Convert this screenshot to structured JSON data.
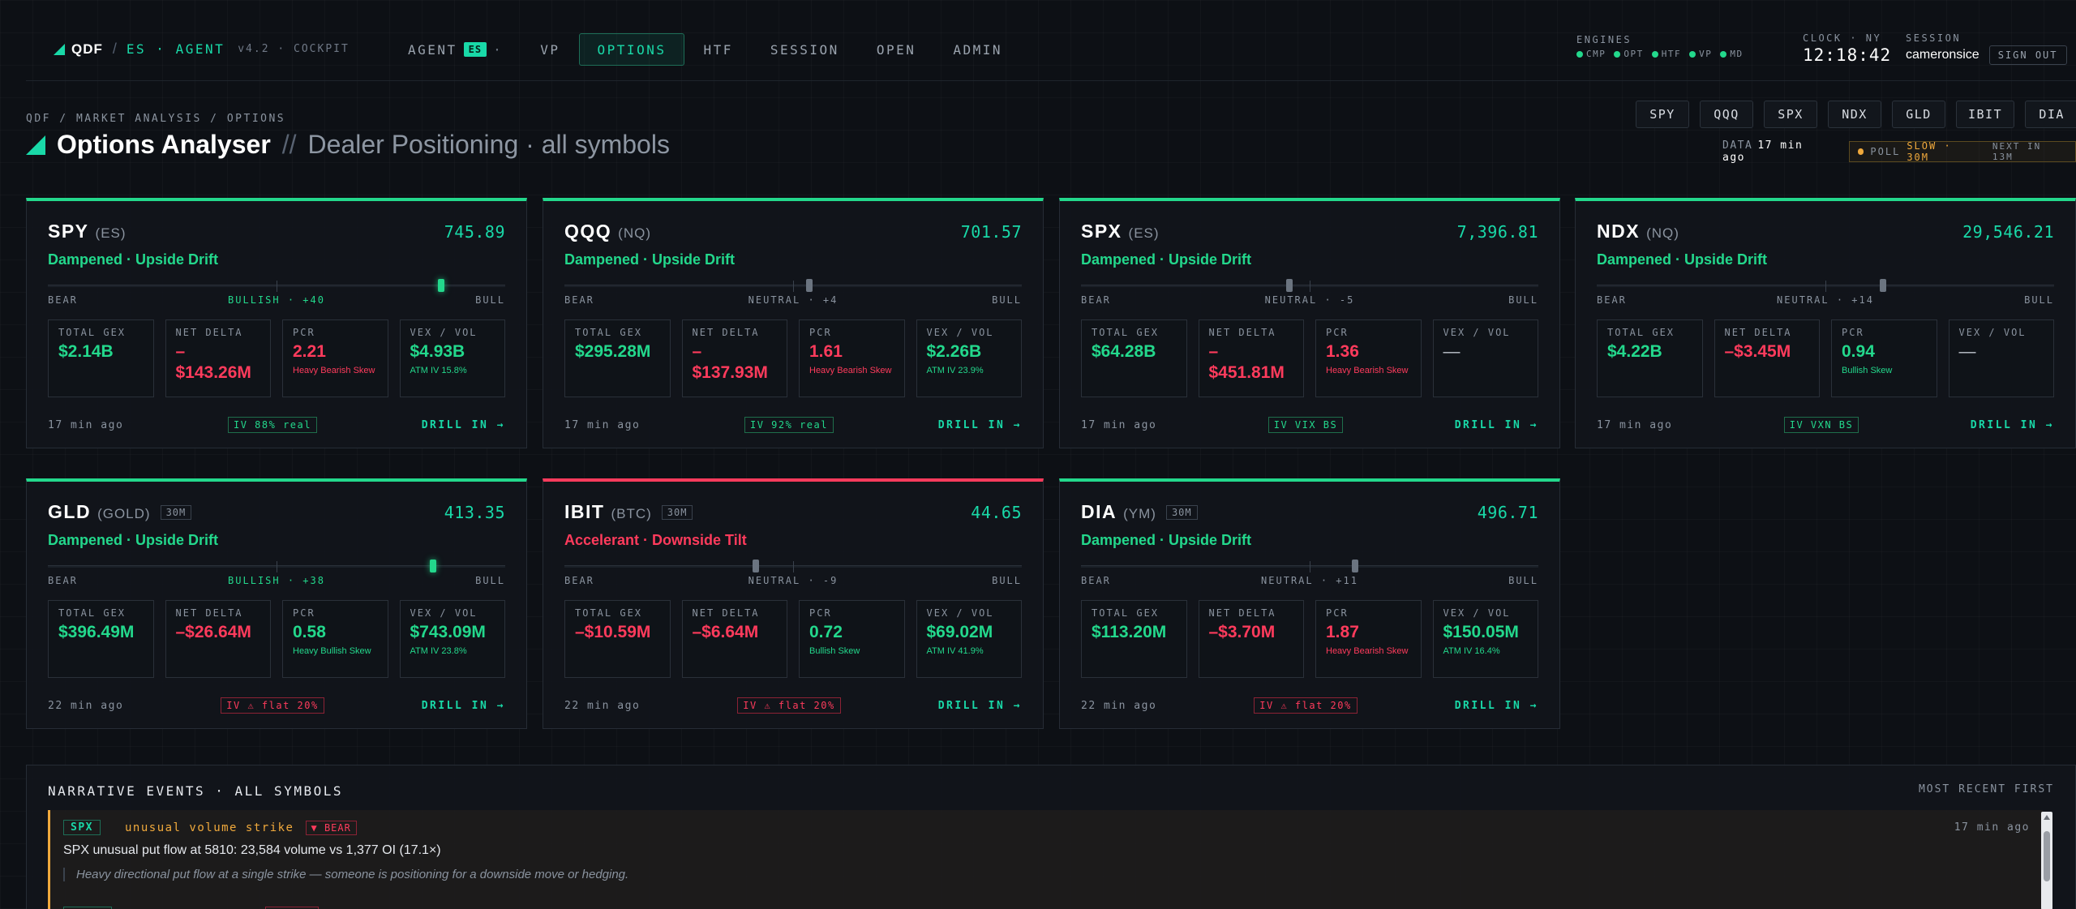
{
  "nav": {
    "brand": "QDF",
    "brand_sub": "ES · AGENT",
    "version": "v4.2 · COCKPIT",
    "items": [
      {
        "label": "AGENT",
        "badge": "ES",
        "dot": "·",
        "active": false
      },
      {
        "label": "VP",
        "active": false
      },
      {
        "label": "OPTIONS",
        "active": true
      },
      {
        "label": "HTF",
        "active": false
      },
      {
        "label": "SESSION",
        "active": false
      },
      {
        "label": "OPEN",
        "active": false
      },
      {
        "label": "ADMIN",
        "active": false
      }
    ],
    "engines_label": "ENGINES",
    "engines": [
      "CMP",
      "OPT",
      "HTF",
      "VP",
      "MD"
    ],
    "clock_label": "CLOCK · NY",
    "clock": "12:18:42",
    "session_label": "SESSION",
    "user": "cameronsice",
    "sign_out": "SIGN OUT"
  },
  "header": {
    "breadcrumb": "QDF / MARKET ANALYSIS / OPTIONS",
    "title": "Options Analyser",
    "separator": "//",
    "subtitle": "Dealer Positioning · all symbols",
    "symbols": [
      "SPY",
      "QQQ",
      "SPX",
      "NDX",
      "GLD",
      "IBIT",
      "DIA"
    ],
    "data_label": "DATA",
    "data_age": "17 min ago",
    "poll_label": "POLL",
    "poll_mode": "SLOW · 30M",
    "poll_next": "NEXT IN 13M"
  },
  "cards": [
    {
      "symbol": "SPY",
      "future": "(ES)",
      "tf": "",
      "price": "745.89",
      "regime": "Dampened · Upside Drift",
      "tone": "bull",
      "bias_label": "BULLISH · +40",
      "bias": 40,
      "bear": "BEAR",
      "bull": "BULL",
      "metrics": [
        {
          "label": "TOTAL GEX",
          "value": "$2.14B",
          "tone": "pos",
          "sub": ""
        },
        {
          "label": "NET DELTA",
          "value": "–$143.26M",
          "tone": "neg",
          "sub": ""
        },
        {
          "label": "PCR",
          "value": "2.21",
          "tone": "neg",
          "sub": "Heavy Bearish Skew"
        },
        {
          "label": "VEX / VOL",
          "value": "$4.93B",
          "tone": "pos",
          "sub": "ATM IV 15.8%"
        }
      ],
      "age": "17 min ago",
      "iv": "IV 88% real",
      "iv_tone": "good",
      "drill": "DRILL IN →"
    },
    {
      "symbol": "QQQ",
      "future": "(NQ)",
      "tf": "",
      "price": "701.57",
      "regime": "Dampened · Upside Drift",
      "tone": "bull",
      "bias_label": "NEUTRAL · +4",
      "bias": 4,
      "bear": "BEAR",
      "bull": "BULL",
      "metrics": [
        {
          "label": "TOTAL GEX",
          "value": "$295.28M",
          "tone": "pos",
          "sub": ""
        },
        {
          "label": "NET DELTA",
          "value": "–$137.93M",
          "tone": "neg",
          "sub": ""
        },
        {
          "label": "PCR",
          "value": "1.61",
          "tone": "neg",
          "sub": "Heavy Bearish Skew"
        },
        {
          "label": "VEX / VOL",
          "value": "$2.26B",
          "tone": "pos",
          "sub": "ATM IV 23.9%"
        }
      ],
      "age": "17 min ago",
      "iv": "IV 92% real",
      "iv_tone": "good",
      "drill": "DRILL IN →"
    },
    {
      "symbol": "SPX",
      "future": "(ES)",
      "tf": "",
      "price": "7,396.81",
      "regime": "Dampened · Upside Drift",
      "tone": "bull",
      "bias_label": "NEUTRAL · -5",
      "bias": -5,
      "bear": "BEAR",
      "bull": "BULL",
      "metrics": [
        {
          "label": "TOTAL GEX",
          "value": "$64.28B",
          "tone": "pos",
          "sub": ""
        },
        {
          "label": "NET DELTA",
          "value": "–$451.81M",
          "tone": "neg",
          "sub": ""
        },
        {
          "label": "PCR",
          "value": "1.36",
          "tone": "neg",
          "sub": "Heavy Bearish Skew"
        },
        {
          "label": "VEX / VOL",
          "value": "—",
          "tone": "na",
          "sub": ""
        }
      ],
      "age": "17 min ago",
      "iv": "IV VIX BS",
      "iv_tone": "good",
      "drill": "DRILL IN →"
    },
    {
      "symbol": "NDX",
      "future": "(NQ)",
      "tf": "",
      "price": "29,546.21",
      "regime": "Dampened · Upside Drift",
      "tone": "bull",
      "bias_label": "NEUTRAL · +14",
      "bias": 14,
      "bear": "BEAR",
      "bull": "BULL",
      "metrics": [
        {
          "label": "TOTAL GEX",
          "value": "$4.22B",
          "tone": "pos",
          "sub": ""
        },
        {
          "label": "NET DELTA",
          "value": "–$3.45M",
          "tone": "neg",
          "sub": ""
        },
        {
          "label": "PCR",
          "value": "0.94",
          "tone": "pos",
          "sub": "Bullish Skew"
        },
        {
          "label": "VEX / VOL",
          "value": "—",
          "tone": "na",
          "sub": ""
        }
      ],
      "age": "17 min ago",
      "iv": "IV VXN BS",
      "iv_tone": "good",
      "drill": "DRILL IN →"
    },
    {
      "symbol": "GLD",
      "future": "(GOLD)",
      "tf": "30M",
      "price": "413.35",
      "regime": "Dampened · Upside Drift",
      "tone": "bull",
      "bias_label": "BULLISH · +38",
      "bias": 38,
      "bear": "BEAR",
      "bull": "BULL",
      "metrics": [
        {
          "label": "TOTAL GEX",
          "value": "$396.49M",
          "tone": "pos",
          "sub": ""
        },
        {
          "label": "NET DELTA",
          "value": "–$26.64M",
          "tone": "neg",
          "sub": ""
        },
        {
          "label": "PCR",
          "value": "0.58",
          "tone": "pos",
          "sub": "Heavy Bullish Skew"
        },
        {
          "label": "VEX / VOL",
          "value": "$743.09M",
          "tone": "pos",
          "sub": "ATM IV 23.8%"
        }
      ],
      "age": "22 min ago",
      "iv": "IV ⚠ flat 20%",
      "iv_tone": "bad",
      "drill": "DRILL IN →"
    },
    {
      "symbol": "IBIT",
      "future": "(BTC)",
      "tf": "30M",
      "price": "44.65",
      "regime": "Accelerant · Downside Tilt",
      "tone": "bear",
      "bias_label": "NEUTRAL · -9",
      "bias": -9,
      "bear": "BEAR",
      "bull": "BULL",
      "metrics": [
        {
          "label": "TOTAL GEX",
          "value": "–$10.59M",
          "tone": "neg",
          "sub": ""
        },
        {
          "label": "NET DELTA",
          "value": "–$6.64M",
          "tone": "neg",
          "sub": ""
        },
        {
          "label": "PCR",
          "value": "0.72",
          "tone": "pos",
          "sub": "Bullish Skew"
        },
        {
          "label": "VEX / VOL",
          "value": "$69.02M",
          "tone": "pos",
          "sub": "ATM IV 41.9%"
        }
      ],
      "age": "22 min ago",
      "iv": "IV ⚠ flat 20%",
      "iv_tone": "bad",
      "drill": "DRILL IN →"
    },
    {
      "symbol": "DIA",
      "future": "(YM)",
      "tf": "30M",
      "price": "496.71",
      "regime": "Dampened · Upside Drift",
      "tone": "bull",
      "bias_label": "NEUTRAL · +11",
      "bias": 11,
      "bear": "BEAR",
      "bull": "BULL",
      "metrics": [
        {
          "label": "TOTAL GEX",
          "value": "$113.20M",
          "tone": "pos",
          "sub": ""
        },
        {
          "label": "NET DELTA",
          "value": "–$3.70M",
          "tone": "neg",
          "sub": ""
        },
        {
          "label": "PCR",
          "value": "1.87",
          "tone": "neg",
          "sub": "Heavy Bearish Skew"
        },
        {
          "label": "VEX / VOL",
          "value": "$150.05M",
          "tone": "pos",
          "sub": "ATM IV 16.4%"
        }
      ],
      "age": "22 min ago",
      "iv": "IV ⚠ flat 20%",
      "iv_tone": "bad",
      "drill": "DRILL IN →"
    }
  ],
  "narrative": {
    "title": "NARRATIVE EVENTS · ALL SYMBOLS",
    "order": "MOST RECENT FIRST",
    "event": {
      "symbol": "SPX",
      "kind": "unusual volume strike",
      "direction": "▼ BEAR",
      "age": "17 min ago",
      "text": "SPX unusual put flow at 5810: 23,584 volume vs 1,377 OI (17.1×)",
      "note": "Heavy directional put flow at a single strike — someone is positioning for a downside move or hedging."
    }
  },
  "colors": {
    "accent": "#19d9a8",
    "bull": "#23d88c",
    "bear": "#ff3b5c",
    "warn": "#f0a93c",
    "background": "#0d1015"
  }
}
